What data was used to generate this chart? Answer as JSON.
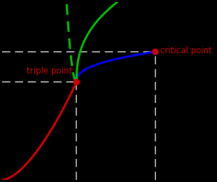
{
  "background_color": "#000000",
  "xlim": [
    0,
    10
  ],
  "ylim": [
    0,
    10
  ],
  "triple_point": [
    3.5,
    5.5
  ],
  "critical_point": [
    7.2,
    7.2
  ],
  "triple_point_label": "triple point",
  "critical_point_label": "critical point",
  "label_color": "#cc0000",
  "label_fontsize": 8.5,
  "dashed_line_color": "#bbbbbb",
  "point_color": "#cc0000",
  "point_size": 45,
  "green_solid_color": "#00bb00",
  "green_dashed_color": "#00bb00",
  "blue_color": "#0000ee",
  "red_color": "#cc0000",
  "line_width": 2.2
}
